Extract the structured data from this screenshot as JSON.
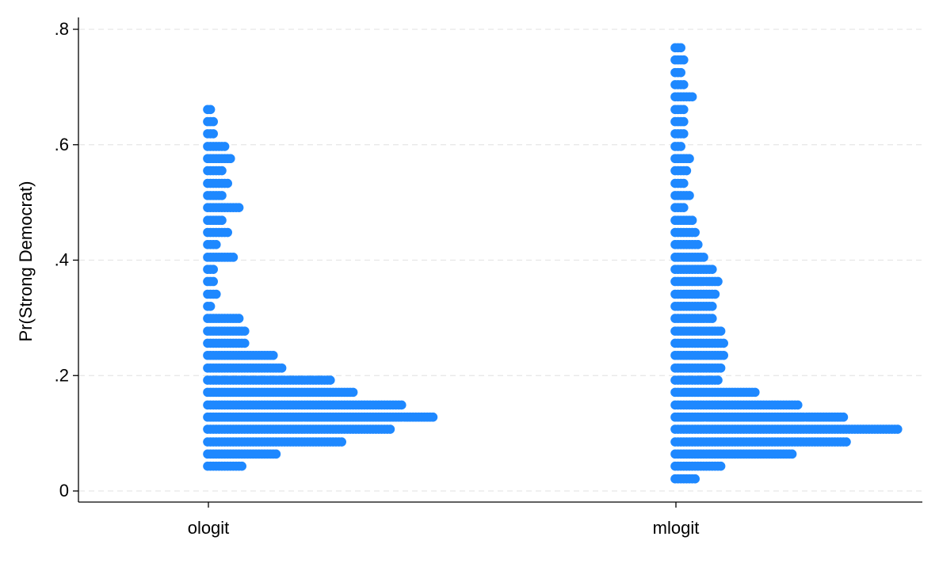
{
  "chart_data": {
    "type": "scatter",
    "subtype": "stacked-dot-strip",
    "ylabel": "Pr(Strong Democrat)",
    "xlabel": "",
    "categories": [
      "ologit",
      "mlogit"
    ],
    "ylim": [
      -0.02,
      0.82
    ],
    "yticks": [
      {
        "value": 0,
        "label": "0"
      },
      {
        "value": 0.2,
        "label": ".2"
      },
      {
        "value": 0.4,
        "label": ".4"
      },
      {
        "value": 0.6,
        "label": ".6"
      },
      {
        "value": 0.8,
        "label": ".8"
      }
    ],
    "grid": true,
    "marker_color": "#1e88ff",
    "bin_width": 0.021,
    "series": [
      {
        "category": "ologit",
        "bins": [
          {
            "y": 0.043,
            "count": 13
          },
          {
            "y": 0.064,
            "count": 25
          },
          {
            "y": 0.085,
            "count": 48
          },
          {
            "y": 0.107,
            "count": 65
          },
          {
            "y": 0.128,
            "count": 80
          },
          {
            "y": 0.149,
            "count": 69
          },
          {
            "y": 0.171,
            "count": 52
          },
          {
            "y": 0.192,
            "count": 44
          },
          {
            "y": 0.213,
            "count": 27
          },
          {
            "y": 0.235,
            "count": 24
          },
          {
            "y": 0.256,
            "count": 14
          },
          {
            "y": 0.277,
            "count": 14
          },
          {
            "y": 0.299,
            "count": 12
          },
          {
            "y": 0.32,
            "count": 2
          },
          {
            "y": 0.341,
            "count": 4
          },
          {
            "y": 0.363,
            "count": 3
          },
          {
            "y": 0.384,
            "count": 3
          },
          {
            "y": 0.405,
            "count": 10
          },
          {
            "y": 0.427,
            "count": 4
          },
          {
            "y": 0.448,
            "count": 8
          },
          {
            "y": 0.469,
            "count": 6
          },
          {
            "y": 0.491,
            "count": 12
          },
          {
            "y": 0.512,
            "count": 6
          },
          {
            "y": 0.533,
            "count": 8
          },
          {
            "y": 0.555,
            "count": 6
          },
          {
            "y": 0.576,
            "count": 9
          },
          {
            "y": 0.597,
            "count": 7
          },
          {
            "y": 0.619,
            "count": 3
          },
          {
            "y": 0.64,
            "count": 3
          },
          {
            "y": 0.661,
            "count": 2
          }
        ]
      },
      {
        "category": "mlogit",
        "bins": [
          {
            "y": 0.021,
            "count": 8
          },
          {
            "y": 0.043,
            "count": 17
          },
          {
            "y": 0.064,
            "count": 42
          },
          {
            "y": 0.085,
            "count": 61
          },
          {
            "y": 0.107,
            "count": 79
          },
          {
            "y": 0.128,
            "count": 60
          },
          {
            "y": 0.149,
            "count": 44
          },
          {
            "y": 0.171,
            "count": 29
          },
          {
            "y": 0.192,
            "count": 16
          },
          {
            "y": 0.213,
            "count": 17
          },
          {
            "y": 0.235,
            "count": 18
          },
          {
            "y": 0.256,
            "count": 18
          },
          {
            "y": 0.277,
            "count": 17
          },
          {
            "y": 0.299,
            "count": 14
          },
          {
            "y": 0.32,
            "count": 14
          },
          {
            "y": 0.341,
            "count": 15
          },
          {
            "y": 0.363,
            "count": 16
          },
          {
            "y": 0.384,
            "count": 14
          },
          {
            "y": 0.405,
            "count": 11
          },
          {
            "y": 0.427,
            "count": 9
          },
          {
            "y": 0.448,
            "count": 8
          },
          {
            "y": 0.469,
            "count": 7
          },
          {
            "y": 0.491,
            "count": 4
          },
          {
            "y": 0.512,
            "count": 6
          },
          {
            "y": 0.533,
            "count": 4
          },
          {
            "y": 0.555,
            "count": 5
          },
          {
            "y": 0.576,
            "count": 6
          },
          {
            "y": 0.597,
            "count": 3
          },
          {
            "y": 0.619,
            "count": 4
          },
          {
            "y": 0.64,
            "count": 4
          },
          {
            "y": 0.661,
            "count": 4
          },
          {
            "y": 0.683,
            "count": 7
          },
          {
            "y": 0.704,
            "count": 4
          },
          {
            "y": 0.725,
            "count": 3
          },
          {
            "y": 0.747,
            "count": 4
          },
          {
            "y": 0.768,
            "count": 3
          }
        ]
      }
    ]
  }
}
